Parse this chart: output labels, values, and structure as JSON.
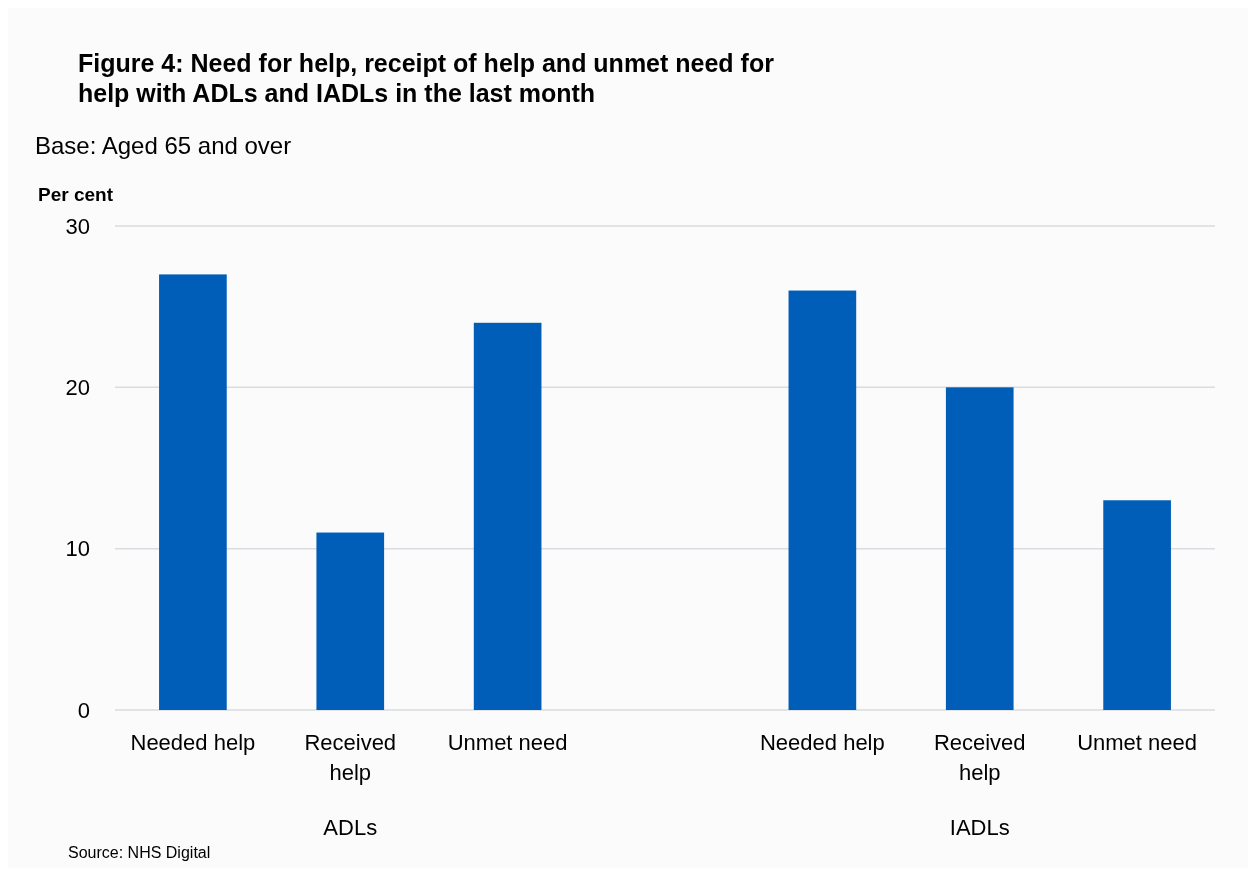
{
  "chart_data": {
    "type": "bar",
    "title": "Figure 4: Need for help, receipt of help and unmet need for help with ADLs and IADLs in the last month",
    "subtitle": "Base: Aged 65 and over",
    "ylabel": "Per cent",
    "categories": [
      "Needed help",
      "Received help",
      "Unmet need",
      null,
      "Needed help",
      "Received help",
      "Unmet need"
    ],
    "values": [
      27,
      11,
      24,
      null,
      26,
      20,
      13
    ],
    "color": "#005eb8",
    "ylim": [
      0,
      30
    ],
    "yticks": [
      0,
      10,
      20,
      30
    ],
    "grid": "y",
    "annotations": [
      "ADLs",
      "IADLs",
      "Source: NHS Digital"
    ]
  }
}
